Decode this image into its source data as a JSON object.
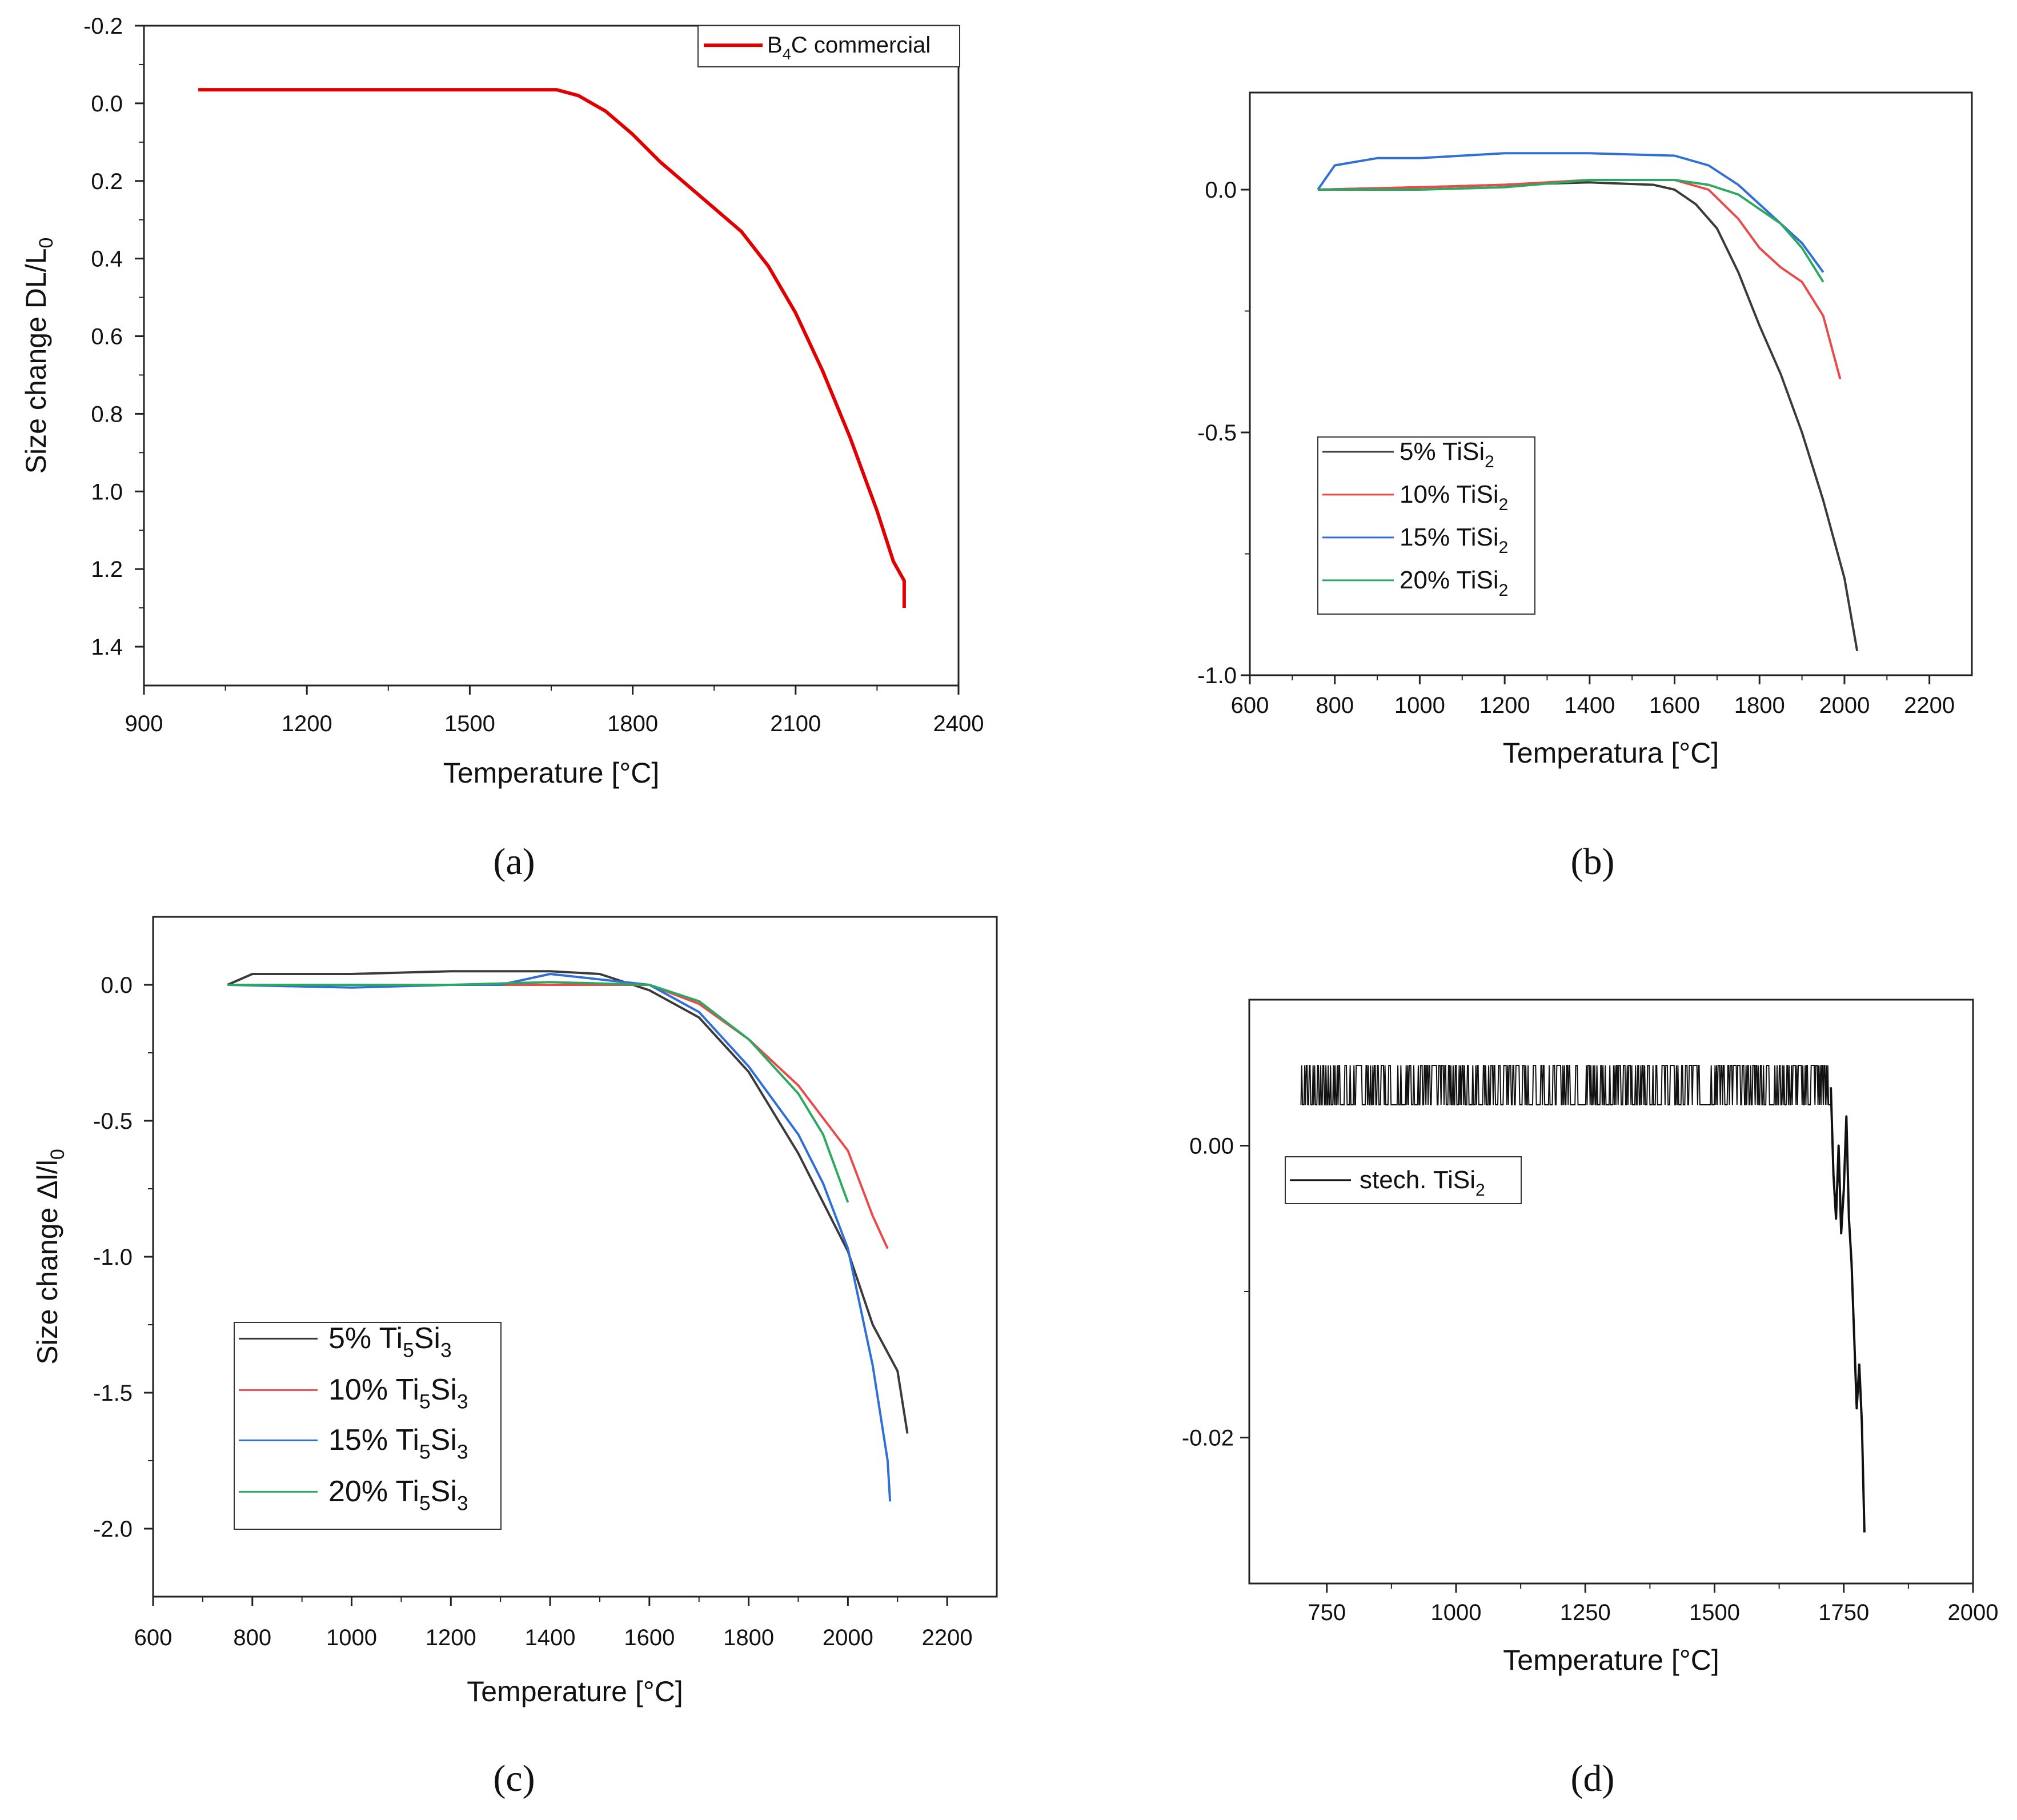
{
  "chart_data": [
    {
      "id": "a",
      "type": "line",
      "panel_label": "a",
      "xlabel": "Temperature [°C]",
      "ylabel": "Size change DL/L",
      "ylabel_subscript": "0",
      "xlim": [
        900,
        2400
      ],
      "ylim": [
        -0.2,
        1.5
      ],
      "y_inverted": true,
      "xticks": [
        900,
        1200,
        1500,
        1800,
        2100,
        2400
      ],
      "xtick_labels": [
        "900",
        "1200",
        "1500",
        "1800",
        "2100",
        "2400"
      ],
      "yticks": [
        -0.2,
        0.0,
        0.2,
        0.4,
        0.6,
        0.8,
        1.0,
        1.2,
        1.4
      ],
      "ytick_labels": [
        "-0.2",
        "0.0",
        "0.2",
        "0.4",
        "0.6",
        "0.8",
        "1.0",
        "1.2",
        "1.4"
      ],
      "legend_position": "top-right",
      "series": [
        {
          "name": "B4C commercial",
          "legend_main": "B",
          "legend_sub": "4",
          "legend_rest": "C commercial",
          "color": "#e00000",
          "x": [
            1000,
            1200,
            1400,
            1600,
            1660,
            1700,
            1750,
            1800,
            1850,
            1900,
            1950,
            2000,
            2050,
            2100,
            2150,
            2200,
            2250,
            2280,
            2300,
            2300
          ],
          "y": [
            -0.035,
            -0.035,
            -0.035,
            -0.035,
            -0.035,
            -0.02,
            0.02,
            0.08,
            0.15,
            0.21,
            0.27,
            0.33,
            0.42,
            0.54,
            0.69,
            0.86,
            1.05,
            1.18,
            1.23,
            1.3
          ]
        }
      ]
    },
    {
      "id": "b",
      "type": "line",
      "panel_label": "b",
      "xlabel": "Temperatura [°C]",
      "ylabel": "",
      "xlim": [
        600,
        2300
      ],
      "ylim": [
        -1.0,
        0.2
      ],
      "y_inverted": false,
      "xticks": [
        600,
        800,
        1000,
        1200,
        1400,
        1600,
        1800,
        2000,
        2200
      ],
      "xtick_labels": [
        "600",
        "800",
        "1000",
        "1200",
        "1400",
        "1600",
        "1800",
        "2000",
        "2200"
      ],
      "yticks": [
        0.0,
        -0.5,
        -1.0
      ],
      "ytick_labels": [
        "0.0",
        "-0.5",
        "-1.0"
      ],
      "legend_position": "bottom-left",
      "series": [
        {
          "name": "5% TiSi2",
          "legend_main": "5% TiSi",
          "legend_sub": "2",
          "legend_rest": "",
          "color": "#3a3a3a",
          "x": [
            760,
            1000,
            1200,
            1400,
            1550,
            1600,
            1650,
            1700,
            1750,
            1800,
            1850,
            1900,
            1950,
            2000,
            2030
          ],
          "y": [
            0,
            0.005,
            0.01,
            0.015,
            0.01,
            0.0,
            -0.03,
            -0.08,
            -0.17,
            -0.28,
            -0.38,
            -0.5,
            -0.64,
            -0.8,
            -0.95
          ]
        },
        {
          "name": "10% TiSi2",
          "legend_main": "10% TiSi",
          "legend_sub": "2",
          "legend_rest": "",
          "color": "#e84b4b",
          "x": [
            760,
            1000,
            1200,
            1400,
            1600,
            1680,
            1750,
            1800,
            1850,
            1900,
            1950,
            1990
          ],
          "y": [
            0,
            0.005,
            0.01,
            0.02,
            0.02,
            0.0,
            -0.06,
            -0.12,
            -0.16,
            -0.19,
            -0.26,
            -0.39
          ]
        },
        {
          "name": "15% TiSi2",
          "legend_main": "15% TiSi",
          "legend_sub": "2",
          "legend_rest": "",
          "color": "#2f6fd6",
          "x": [
            760,
            800,
            900,
            1000,
            1200,
            1400,
            1600,
            1680,
            1750,
            1800,
            1850,
            1900,
            1950
          ],
          "y": [
            0,
            0.05,
            0.065,
            0.065,
            0.075,
            0.075,
            0.07,
            0.05,
            0.01,
            -0.03,
            -0.07,
            -0.11,
            -0.17
          ]
        },
        {
          "name": "20% TiSi2",
          "legend_main": "20% TiSi",
          "legend_sub": "2",
          "legend_rest": "",
          "color": "#2ea860",
          "x": [
            760,
            1000,
            1200,
            1400,
            1600,
            1680,
            1750,
            1800,
            1850,
            1900,
            1950
          ],
          "y": [
            0,
            0.0,
            0.005,
            0.02,
            0.02,
            0.01,
            -0.01,
            -0.04,
            -0.07,
            -0.12,
            -0.19
          ]
        }
      ]
    },
    {
      "id": "c",
      "type": "line",
      "panel_label": "c",
      "xlabel": "Temperature [°C]",
      "ylabel": "Size change Δl/l",
      "ylabel_subscript": "0",
      "xlim": [
        600,
        2300
      ],
      "ylim": [
        -2.25,
        0.25
      ],
      "y_inverted": false,
      "xticks": [
        600,
        800,
        1000,
        1200,
        1400,
        1600,
        1800,
        2000,
        2200
      ],
      "xtick_labels": [
        "600",
        "800",
        "1000",
        "1200",
        "1400",
        "1600",
        "1800",
        "2000",
        "2200"
      ],
      "yticks": [
        0.0,
        -0.5,
        -1.0,
        -1.5,
        -2.0
      ],
      "ytick_labels": [
        "0.0",
        "-0.5",
        "-1.0",
        "-1.5",
        "-2.0"
      ],
      "legend_position": "bottom-left",
      "series": [
        {
          "name": "5% Ti5Si3",
          "legend_main": "5% Ti",
          "legend_sub": "5",
          "legend_rest": "Si",
          "legend_sub2": "3",
          "color": "#3a3a3a",
          "x": [
            750,
            800,
            1000,
            1200,
            1400,
            1500,
            1600,
            1700,
            1800,
            1900,
            1950,
            2000,
            2050,
            2100,
            2120
          ],
          "y": [
            0,
            0.04,
            0.04,
            0.05,
            0.05,
            0.04,
            -0.02,
            -0.12,
            -0.32,
            -0.62,
            -0.8,
            -0.98,
            -1.25,
            -1.42,
            -1.65
          ]
        },
        {
          "name": "10% Ti5Si3",
          "legend_main": "10% Ti",
          "legend_sub": "5",
          "legend_rest": "Si",
          "legend_sub2": "3",
          "color": "#e84b4b",
          "x": [
            750,
            1000,
            1200,
            1400,
            1600,
            1700,
            1800,
            1900,
            1950,
            2000,
            2050,
            2080
          ],
          "y": [
            0,
            0.0,
            0.0,
            0.0,
            0.0,
            -0.07,
            -0.2,
            -0.37,
            -0.49,
            -0.61,
            -0.85,
            -0.97
          ]
        },
        {
          "name": "15% Ti5Si3",
          "legend_main": "15% Ti",
          "legend_sub": "5",
          "legend_rest": "Si",
          "legend_sub2": "3",
          "color": "#2f6fd6",
          "x": [
            750,
            1000,
            1200,
            1300,
            1400,
            1600,
            1700,
            1800,
            1900,
            1950,
            2000,
            2050,
            2080,
            2085
          ],
          "y": [
            0,
            -0.01,
            0.0,
            0.0,
            0.04,
            0.0,
            -0.1,
            -0.3,
            -0.55,
            -0.73,
            -0.97,
            -1.4,
            -1.75,
            -1.9
          ]
        },
        {
          "name": "20% Ti5Si3",
          "legend_main": "20% Ti",
          "legend_sub": "5",
          "legend_rest": "Si",
          "legend_sub2": "3",
          "color": "#2ea860",
          "x": [
            750,
            1000,
            1200,
            1400,
            1600,
            1700,
            1800,
            1900,
            1950,
            2000
          ],
          "y": [
            0,
            0.0,
            0.0,
            0.01,
            0.0,
            -0.06,
            -0.2,
            -0.4,
            -0.55,
            -0.8
          ]
        }
      ]
    },
    {
      "id": "d",
      "type": "line",
      "panel_label": "d",
      "xlabel": "Temperature [°C]",
      "ylabel": "",
      "xlim": [
        600,
        2000
      ],
      "ylim": [
        -0.03,
        0.01
      ],
      "y_inverted": false,
      "xticks": [
        750,
        1000,
        1250,
        1500,
        1750,
        2000
      ],
      "xtick_labels": [
        "750",
        "1000",
        "1250",
        "1500",
        "1750",
        "2000"
      ],
      "yticks": [
        0.0,
        -0.02
      ],
      "ytick_labels": [
        "0.00",
        "-0.02"
      ],
      "legend_position": "top-left",
      "series": [
        {
          "name": "stech. TiSi2",
          "legend_main": "stech. TiSi",
          "legend_sub": "2",
          "legend_rest": "",
          "color": "#111111",
          "noisy_band": [
            0.0028,
            0.0055
          ],
          "band_x": [
            700,
            1725
          ],
          "x": [
            1725,
            1730,
            1735,
            1740,
            1745,
            1750,
            1755,
            1760,
            1765,
            1770,
            1775,
            1780,
            1785,
            1790
          ],
          "y": [
            0.004,
            -0.002,
            -0.005,
            0.0,
            -0.006,
            -0.003,
            0.002,
            -0.005,
            -0.008,
            -0.013,
            -0.018,
            -0.015,
            -0.019,
            -0.0265
          ]
        }
      ]
    }
  ]
}
